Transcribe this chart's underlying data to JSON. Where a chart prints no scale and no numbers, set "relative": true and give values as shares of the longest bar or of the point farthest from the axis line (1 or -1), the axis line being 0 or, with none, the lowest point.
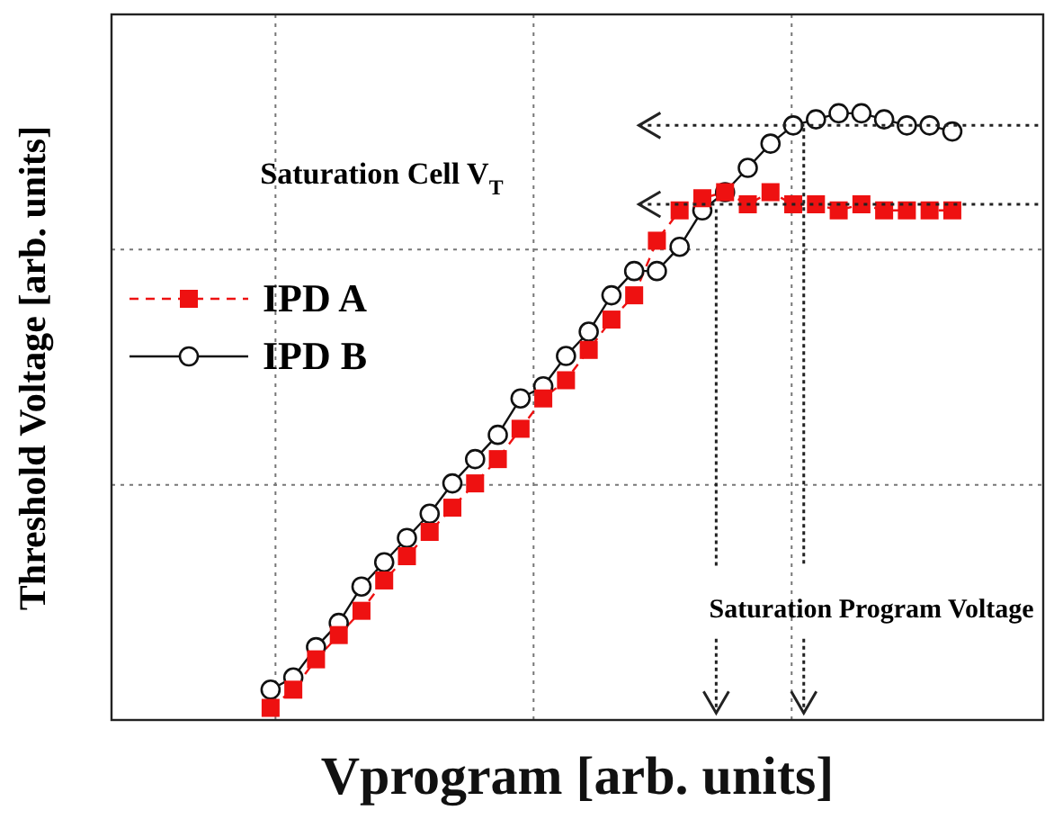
{
  "chart_data": {
    "type": "line",
    "relative": true,
    "xlabel": "Vprogram [arb. units]",
    "ylabel": "Threshold Voltage [arb. units]",
    "categories": [
      null,
      null,
      null,
      null,
      null,
      null,
      null,
      null,
      null,
      null,
      null,
      null,
      null,
      null,
      null,
      null,
      null,
      null,
      null,
      null,
      null,
      null,
      null,
      null,
      null,
      null,
      null,
      null,
      null,
      null,
      null,
      null,
      null,
      null,
      null,
      null,
      null,
      null,
      null,
      null,
      null,
      null
    ],
    "series": [
      {
        "name": "IPD A",
        "color": "#ee1111",
        "marker": "square",
        "line_style": "dashed",
        "values": [
          null,
          null,
          null,
          null,
          null,
          null,
          null,
          0.02,
          0.05,
          0.1,
          0.14,
          0.18,
          0.23,
          0.27,
          0.31,
          0.35,
          0.39,
          0.43,
          0.48,
          0.53,
          0.56,
          0.61,
          0.66,
          0.7,
          0.79,
          0.84,
          0.86,
          0.87,
          0.85,
          0.87,
          0.85,
          0.85,
          0.84,
          0.85,
          0.84,
          0.84,
          0.84,
          0.84,
          null,
          null,
          null,
          null
        ]
      },
      {
        "name": "IPD B",
        "color": "#111111",
        "marker": "circle",
        "line_style": "solid",
        "values": [
          null,
          null,
          null,
          null,
          null,
          null,
          null,
          0.05,
          0.07,
          0.12,
          0.16,
          0.22,
          0.26,
          0.3,
          0.34,
          0.39,
          0.43,
          0.47,
          0.53,
          0.55,
          0.6,
          0.64,
          0.7,
          0.74,
          0.74,
          0.78,
          0.84,
          0.87,
          0.91,
          0.95,
          0.98,
          0.99,
          1,
          1,
          0.99,
          0.98,
          0.98,
          0.97,
          null,
          null,
          null,
          null
        ]
      }
    ],
    "grid": true,
    "legend": "left",
    "ref_lines": [
      {
        "axis": "y",
        "value": 0.98,
        "line_style": "dotted",
        "color": "#222222"
      },
      {
        "axis": "y",
        "value": 0.85,
        "line_style": "dotted",
        "color": "#222222"
      }
    ],
    "annotations": [
      "Saturation Cell V$_{T}$",
      "Saturation Program Voltage"
    ]
  }
}
